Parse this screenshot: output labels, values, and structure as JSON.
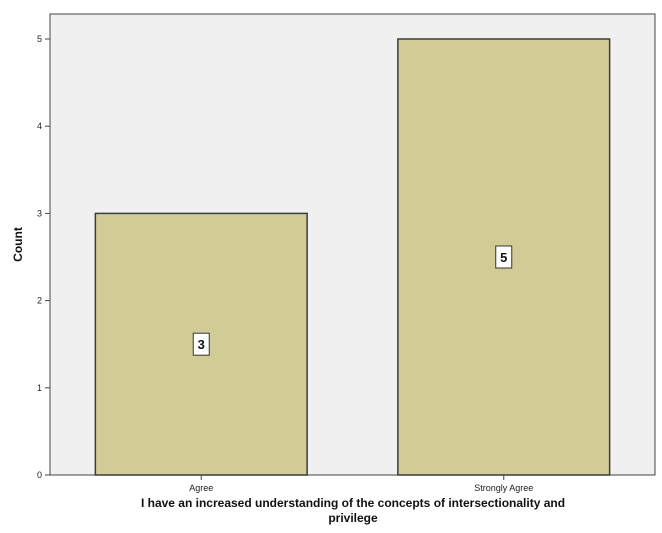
{
  "chart_data": {
    "type": "bar",
    "categories": [
      "Agree",
      "Strongly Agree"
    ],
    "values": [
      3,
      5
    ],
    "data_labels": [
      "3",
      "5"
    ],
    "title": "",
    "xlabel": "I have an increased understanding of the concepts of intersectionality and privilege",
    "ylabel": "Count",
    "ylim": [
      0,
      5
    ],
    "yticks": [
      "0",
      "1",
      "2",
      "3",
      "4",
      "5"
    ],
    "grid": false,
    "legend": "none",
    "colors": {
      "bar_fill": "#d1cc95",
      "bar_stroke": "#3c3c3c",
      "plot_background": "#f0f0f0",
      "axis": "#444444"
    }
  }
}
